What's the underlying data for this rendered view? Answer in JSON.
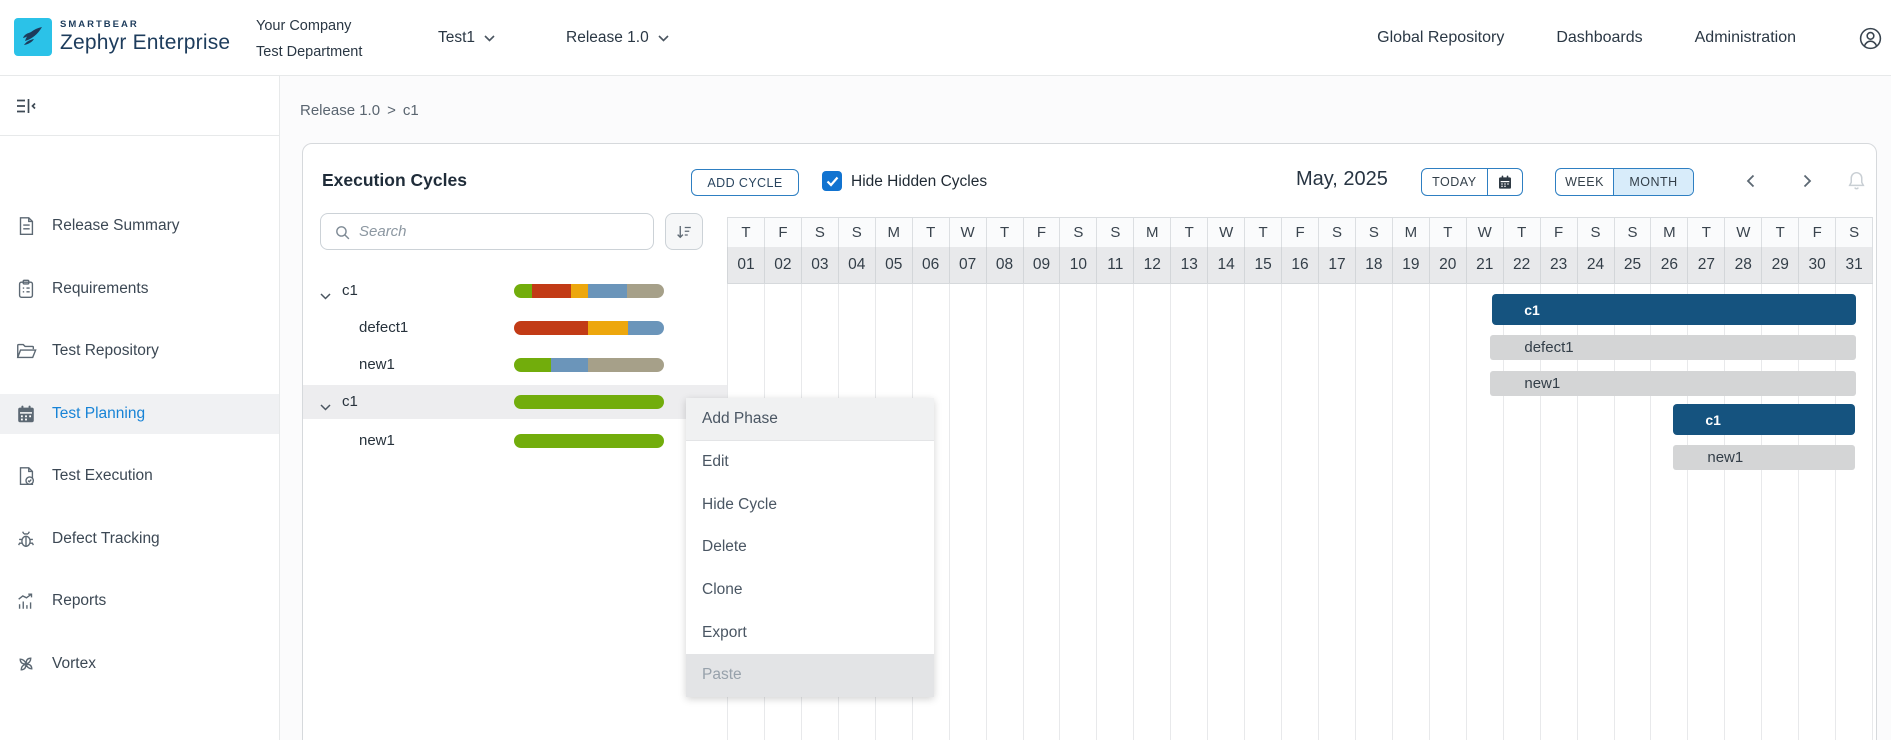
{
  "header": {
    "brand": {
      "smartbear": "SMARTBEAR",
      "product": "Zephyr Enterprise"
    },
    "company": {
      "line1": "Your Company",
      "line2": "Test Department"
    },
    "project_selector": {
      "label": "Test1"
    },
    "release_selector": {
      "label": "Release 1.0"
    },
    "nav_links": [
      "Global Repository",
      "Dashboards",
      "Administration"
    ]
  },
  "sidebar": {
    "items": [
      {
        "label": "Release Summary",
        "icon": "document-icon",
        "active": false
      },
      {
        "label": "Requirements",
        "icon": "clipboard-icon",
        "active": false
      },
      {
        "label": "Test Repository",
        "icon": "folder-open-icon",
        "active": false
      },
      {
        "label": "Test Planning",
        "icon": "calendar-icon",
        "active": true
      },
      {
        "label": "Test Execution",
        "icon": "page-check-icon",
        "active": false
      },
      {
        "label": "Defect Tracking",
        "icon": "bug-icon",
        "active": false
      },
      {
        "label": "Reports",
        "icon": "chart-icon",
        "active": false
      },
      {
        "label": "Vortex",
        "icon": "propeller-icon",
        "active": false
      }
    ]
  },
  "breadcrumb": {
    "items": [
      "Release 1.0",
      "c1"
    ],
    "separator": ">"
  },
  "panel": {
    "title": "Execution Cycles",
    "add_cycle_label": "ADD CYCLE",
    "hide_hidden": {
      "label": "Hide Hidden Cycles",
      "checked": true
    },
    "period_label": "May, 2025",
    "today_label": "TODAY",
    "week_label": "WEEK",
    "month_label": "MONTH",
    "selected_view": "MONTH"
  },
  "cycle_list": {
    "search_placeholder": "Search",
    "rows": [
      {
        "label": "c1",
        "type": "cycle",
        "level": 0,
        "expanded": true,
        "highlighted": false,
        "segments": [
          {
            "color": "green",
            "pct": 12
          },
          {
            "color": "red",
            "pct": 26
          },
          {
            "color": "amber",
            "pct": 11.5
          },
          {
            "color": "blue",
            "pct": 25.5
          },
          {
            "color": "tan",
            "pct": 25
          }
        ]
      },
      {
        "label": "defect1",
        "type": "phase",
        "level": 1,
        "highlighted": false,
        "segments": [
          {
            "color": "red",
            "pct": 49
          },
          {
            "color": "amber",
            "pct": 27
          },
          {
            "color": "blue",
            "pct": 24
          }
        ]
      },
      {
        "label": "new1",
        "type": "phase",
        "level": 1,
        "highlighted": false,
        "segments": [
          {
            "color": "green",
            "pct": 24.5
          },
          {
            "color": "blue",
            "pct": 24.5
          },
          {
            "color": "tan",
            "pct": 51
          }
        ]
      },
      {
        "label": "c1",
        "type": "cycle",
        "level": 0,
        "expanded": true,
        "highlighted": true,
        "segments": [
          {
            "color": "green",
            "pct": 100
          }
        ]
      },
      {
        "label": "new1",
        "type": "phase",
        "level": 1,
        "highlighted": false,
        "segments": [
          {
            "color": "green",
            "pct": 100
          }
        ]
      }
    ]
  },
  "calendar": {
    "day_letters": [
      "T",
      "F",
      "S",
      "S",
      "M",
      "T",
      "W",
      "T",
      "F",
      "S",
      "S",
      "M",
      "T",
      "W",
      "T",
      "F",
      "S",
      "S",
      "M",
      "T",
      "W",
      "T",
      "F",
      "S",
      "S",
      "M",
      "T",
      "W",
      "T",
      "F",
      "S"
    ],
    "dates": [
      "01",
      "02",
      "03",
      "04",
      "05",
      "06",
      "07",
      "08",
      "09",
      "10",
      "11",
      "12",
      "13",
      "14",
      "15",
      "16",
      "17",
      "18",
      "19",
      "20",
      "21",
      "22",
      "23",
      "24",
      "25",
      "26",
      "27",
      "28",
      "29",
      "30",
      "31"
    ],
    "bars": [
      {
        "label": "c1",
        "kind": "cycle",
        "row": 0,
        "start_col": 20.7,
        "end_col": 30.55
      },
      {
        "label": "defect1",
        "kind": "phase",
        "row": 1,
        "start_col": 20.65,
        "end_col": 30.55
      },
      {
        "label": "new1",
        "kind": "phase",
        "row": 2,
        "start_col": 20.65,
        "end_col": 30.55
      },
      {
        "label": "c1",
        "kind": "cycle",
        "row": 3,
        "start_col": 25.6,
        "end_col": 30.5
      },
      {
        "label": "new1",
        "kind": "phase",
        "row": 4,
        "start_col": 25.6,
        "end_col": 30.5
      }
    ]
  },
  "context_menu": {
    "items": [
      {
        "label": "Add Phase",
        "state": "hover"
      },
      {
        "label": "Edit",
        "state": "normal"
      },
      {
        "label": "Hide Cycle",
        "state": "normal"
      },
      {
        "label": "Delete",
        "state": "normal"
      },
      {
        "label": "Clone",
        "state": "normal"
      },
      {
        "label": "Export",
        "state": "normal"
      },
      {
        "label": "Paste",
        "state": "disabled"
      }
    ]
  },
  "colors": {
    "logo_cyan": "#2bc2e8",
    "brand_navy": "#1d3c5c",
    "accent_blue": "#2e7fc2",
    "active_blue": "#1783d6",
    "checkbox_blue": "#1173d0",
    "cycle_bar": "#15537f",
    "phase_bar": "#d4d5d6",
    "month_selected_bg": "#d8ecfa",
    "segment_palette": {
      "green": "#72ad0c",
      "red": "#c23b16",
      "amber": "#eda70d",
      "blue": "#6b95ba",
      "tan": "#a6a089"
    }
  }
}
